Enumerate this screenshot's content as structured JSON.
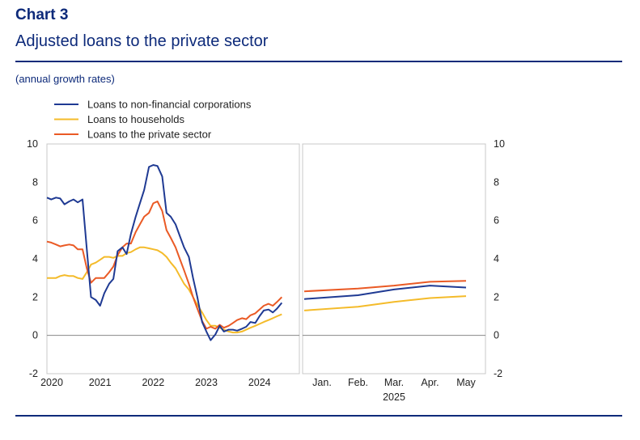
{
  "header": {
    "chart_number": "Chart 3",
    "title": "Adjusted loans to the private sector",
    "subtitle": "(annual growth rates)"
  },
  "colors": {
    "nfc": "#1f3a93",
    "households": "#f4bb2a",
    "private": "#ea5a25",
    "brand": "#0d2a7a",
    "grid": "#c8c8c8"
  },
  "chart_data": {
    "type": "line",
    "ylim": [
      -2,
      10
    ],
    "yticks": [
      -2,
      0,
      2,
      4,
      6,
      8,
      10
    ],
    "legend": [
      {
        "key": "nfc",
        "label": "Loans to non-financial corporations"
      },
      {
        "key": "households",
        "label": "Loans to households"
      },
      {
        "key": "private",
        "label": "Loans to the private sector"
      }
    ],
    "left_panel": {
      "x_range": [
        2020.0,
        2024.75
      ],
      "x_ticks": [
        "2020",
        "2021",
        "2022",
        "2023",
        "2024"
      ],
      "x_tick_values": [
        2020,
        2021,
        2022,
        2023,
        2024
      ],
      "series": [
        {
          "key": "nfc",
          "name": "Loans to non-financial corporations",
          "x": [
            2020.0,
            2020.08,
            2020.17,
            2020.25,
            2020.33,
            2020.42,
            2020.5,
            2020.58,
            2020.67,
            2020.75,
            2020.83,
            2020.92,
            2021.0,
            2021.08,
            2021.17,
            2021.25,
            2021.33,
            2021.42,
            2021.5,
            2021.58,
            2021.67,
            2021.75,
            2021.83,
            2021.92,
            2022.0,
            2022.08,
            2022.17,
            2022.25,
            2022.33,
            2022.42,
            2022.5,
            2022.58,
            2022.67,
            2022.75,
            2022.83,
            2022.92,
            2023.0,
            2023.08,
            2023.17,
            2023.25,
            2023.33,
            2023.42,
            2023.5,
            2023.58,
            2023.67,
            2023.75,
            2023.83,
            2023.92,
            2024.0,
            2024.08,
            2024.17,
            2024.25,
            2024.33,
            2024.42
          ],
          "y": [
            7.2,
            7.1,
            7.2,
            7.15,
            6.85,
            7.0,
            7.1,
            6.95,
            7.1,
            4.5,
            2.0,
            1.85,
            1.55,
            2.2,
            2.7,
            2.95,
            4.4,
            4.6,
            4.25,
            5.3,
            6.2,
            6.9,
            7.6,
            8.8,
            8.9,
            8.85,
            8.3,
            6.4,
            6.2,
            5.8,
            5.2,
            4.6,
            4.1,
            3.0,
            2.0,
            0.7,
            0.2,
            -0.25,
            0.05,
            0.5,
            0.2,
            0.3,
            0.3,
            0.25,
            0.35,
            0.45,
            0.7,
            0.65,
            1.0,
            1.3,
            1.35,
            1.2,
            1.4,
            1.7
          ]
        },
        {
          "key": "households",
          "name": "Loans to households",
          "x": [
            2020.0,
            2020.08,
            2020.17,
            2020.25,
            2020.33,
            2020.42,
            2020.5,
            2020.58,
            2020.67,
            2020.75,
            2020.83,
            2020.92,
            2021.0,
            2021.08,
            2021.17,
            2021.25,
            2021.33,
            2021.42,
            2021.5,
            2021.58,
            2021.67,
            2021.75,
            2021.83,
            2021.92,
            2022.0,
            2022.08,
            2022.17,
            2022.25,
            2022.33,
            2022.42,
            2022.5,
            2022.58,
            2022.67,
            2022.75,
            2022.83,
            2022.92,
            2023.0,
            2023.08,
            2023.17,
            2023.25,
            2023.33,
            2023.42,
            2023.5,
            2023.58,
            2023.67,
            2023.75,
            2023.83,
            2023.92,
            2024.0,
            2024.08,
            2024.17,
            2024.25,
            2024.33,
            2024.42
          ],
          "y": [
            3.0,
            3.0,
            3.0,
            3.1,
            3.15,
            3.1,
            3.1,
            3.0,
            2.95,
            3.3,
            3.7,
            3.8,
            3.95,
            4.1,
            4.1,
            4.05,
            4.15,
            4.15,
            4.3,
            4.35,
            4.5,
            4.6,
            4.6,
            4.55,
            4.5,
            4.45,
            4.3,
            4.1,
            3.8,
            3.5,
            3.1,
            2.7,
            2.4,
            2.0,
            1.6,
            1.2,
            0.8,
            0.5,
            0.5,
            0.4,
            0.3,
            0.2,
            0.15,
            0.15,
            0.2,
            0.3,
            0.4,
            0.5,
            0.6,
            0.7,
            0.8,
            0.9,
            1.0,
            1.1
          ]
        },
        {
          "key": "private",
          "name": "Loans to the private sector",
          "x": [
            2020.0,
            2020.08,
            2020.17,
            2020.25,
            2020.33,
            2020.42,
            2020.5,
            2020.58,
            2020.67,
            2020.75,
            2020.83,
            2020.92,
            2021.0,
            2021.08,
            2021.17,
            2021.25,
            2021.33,
            2021.42,
            2021.5,
            2021.58,
            2021.67,
            2021.75,
            2021.83,
            2021.92,
            2022.0,
            2022.08,
            2022.17,
            2022.25,
            2022.33,
            2022.42,
            2022.5,
            2022.58,
            2022.67,
            2022.75,
            2022.83,
            2022.92,
            2023.0,
            2023.08,
            2023.17,
            2023.25,
            2023.33,
            2023.42,
            2023.5,
            2023.58,
            2023.67,
            2023.75,
            2023.83,
            2023.92,
            2024.0,
            2024.08,
            2024.17,
            2024.25,
            2024.33,
            2024.42
          ],
          "y": [
            4.9,
            4.85,
            4.75,
            4.65,
            4.7,
            4.75,
            4.7,
            4.5,
            4.5,
            3.5,
            2.75,
            3.0,
            3.0,
            3.0,
            3.3,
            3.6,
            4.2,
            4.6,
            4.8,
            4.8,
            5.4,
            5.8,
            6.2,
            6.4,
            6.9,
            7.0,
            6.5,
            5.5,
            5.1,
            4.6,
            4.0,
            3.4,
            2.7,
            2.0,
            1.4,
            0.75,
            0.35,
            0.45,
            0.35,
            0.55,
            0.4,
            0.5,
            0.65,
            0.8,
            0.9,
            0.85,
            1.05,
            1.15,
            1.35,
            1.55,
            1.65,
            1.55,
            1.75,
            2.0
          ]
        }
      ]
    },
    "right_panel": {
      "x_labels": [
        "Jan.",
        "Feb.",
        "Mar.",
        "Apr.",
        "May"
      ],
      "year_label": "2025",
      "series": [
        {
          "key": "nfc",
          "name": "Loans to non-financial corporations",
          "values": [
            1.9,
            2.1,
            2.4,
            2.6,
            2.5
          ]
        },
        {
          "key": "households",
          "name": "Loans to households",
          "values": [
            1.3,
            1.5,
            1.75,
            1.95,
            2.05
          ]
        },
        {
          "key": "private",
          "name": "Loans to the private sector",
          "values": [
            2.3,
            2.45,
            2.6,
            2.8,
            2.85
          ]
        }
      ]
    }
  }
}
